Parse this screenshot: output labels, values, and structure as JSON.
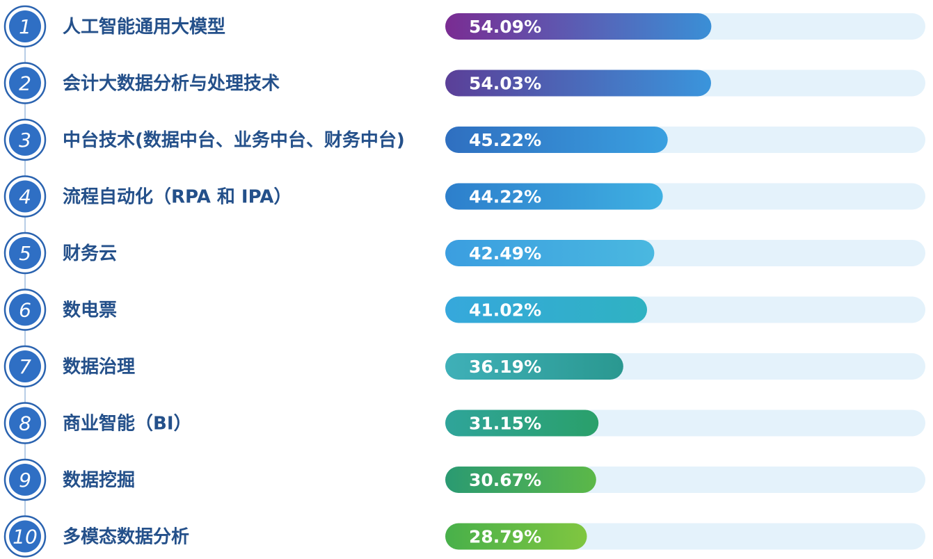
{
  "chart_data": {
    "type": "bar",
    "orientation": "horizontal",
    "categories": [
      "人工智能通用大模型",
      "会计大数据分析与处理技术",
      "中台技术(数据中台、业务中台、财务中台)",
      "流程自动化（RPA 和 IPA）",
      "财务云",
      "数电票",
      "数据治理",
      "商业智能（BI）",
      "数据挖掘",
      "多模态数据分析"
    ],
    "ranks": [
      "1",
      "2",
      "3",
      "4",
      "5",
      "6",
      "7",
      "8",
      "9",
      "10"
    ],
    "values": [
      54.09,
      54.03,
      45.22,
      44.22,
      42.49,
      41.02,
      36.19,
      31.15,
      30.67,
      28.79
    ],
    "value_labels": [
      "54.09%",
      "54.03%",
      "45.22%",
      "44.22%",
      "42.49%",
      "41.02%",
      "36.19%",
      "31.15%",
      "30.67%",
      "28.79%"
    ],
    "xlim": [
      0,
      100
    ],
    "grid": false,
    "colors": {
      "bar_gradients": [
        [
          "#7a2c92",
          "#3a8fd6"
        ],
        [
          "#5b3f98",
          "#3a95dc"
        ],
        [
          "#2f6fc0",
          "#3aa0e0"
        ],
        [
          "#2d7fcc",
          "#3fb0e2"
        ],
        [
          "#3b9ee0",
          "#4ab8e0"
        ],
        [
          "#36a8dc",
          "#2fb2c2"
        ],
        [
          "#3fb0b8",
          "#2a9890"
        ],
        [
          "#2fa49a",
          "#2aa06a"
        ],
        [
          "#2a9a72",
          "#5cb848"
        ],
        [
          "#48b04a",
          "#80c640"
        ]
      ],
      "track": "#e4f2fb",
      "label": "#24508a",
      "rank_circle": "#2f6fc4"
    }
  }
}
